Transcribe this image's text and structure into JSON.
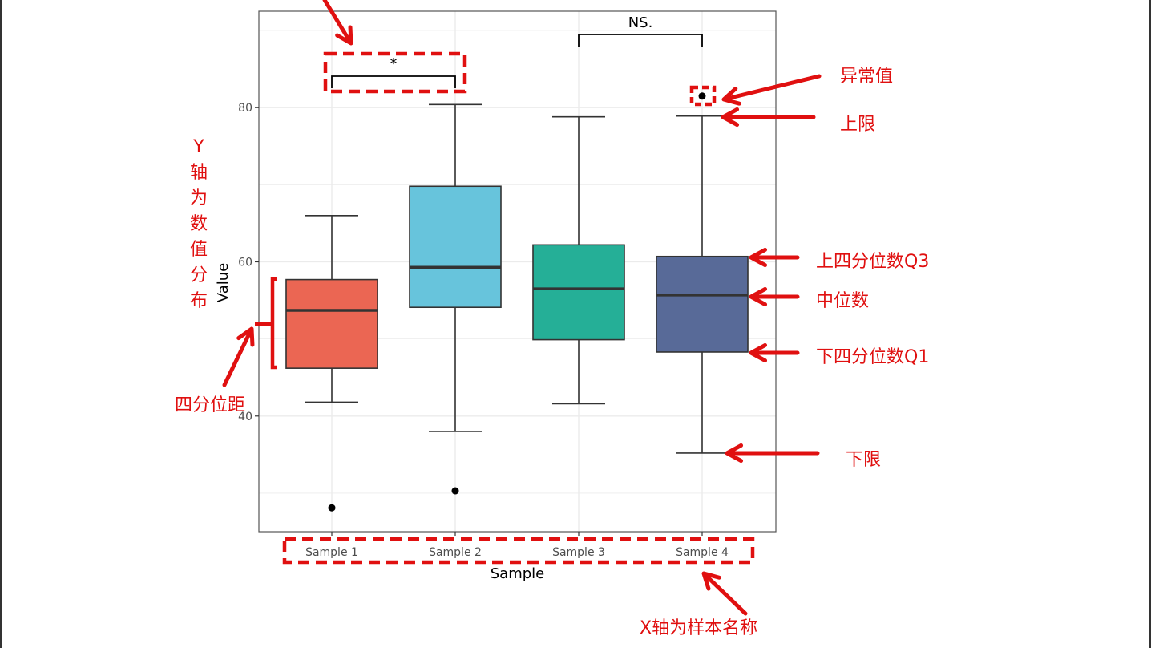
{
  "chart_data": {
    "type": "boxplot",
    "xlabel": "Sample",
    "ylabel": "Value",
    "categories": [
      "Sample 1",
      "Sample 2",
      "Sample 3",
      "Sample 4"
    ],
    "ylim": [
      25,
      92.5
    ],
    "yticks": [
      40,
      60,
      80
    ],
    "grid": true,
    "series": [
      {
        "category": "Sample 1",
        "lower": 41.8,
        "q1": 46.2,
        "median": 53.7,
        "q3": 57.7,
        "upper": 66.0,
        "outliers": [
          28.1
        ],
        "color": "#EB6653"
      },
      {
        "category": "Sample 2",
        "lower": 38.0,
        "q1": 54.1,
        "median": 59.3,
        "q3": 69.8,
        "upper": 80.4,
        "outliers": [
          30.3
        ],
        "color": "#67C4DC"
      },
      {
        "category": "Sample 3",
        "lower": 41.6,
        "q1": 49.9,
        "median": 56.5,
        "q3": 62.2,
        "upper": 78.8,
        "outliers": [],
        "color": "#25AF97"
      },
      {
        "category": "Sample 4",
        "lower": 35.2,
        "q1": 48.3,
        "median": 55.7,
        "q3": 60.7,
        "upper": 78.9,
        "outliers": [
          81.5
        ],
        "color": "#586A98"
      }
    ],
    "significance": [
      {
        "from": "Sample 1",
        "to": "Sample 2",
        "label": "*"
      },
      {
        "from": "Sample 3",
        "to": "Sample 4",
        "label": "NS."
      }
    ]
  },
  "annotations": {
    "y_axis": [
      "Y",
      "轴",
      "为",
      "数",
      "值",
      "分",
      "布"
    ],
    "iqr": "四分位距",
    "outlier": "异常值",
    "upper_limit": "上限",
    "q3": "上四分位数Q3",
    "median": "中位数",
    "q1": "下四分位数Q1",
    "lower_limit": "下限",
    "x_axis": "X轴为样本名称"
  },
  "colors": {
    "annotation": "#E01010"
  }
}
